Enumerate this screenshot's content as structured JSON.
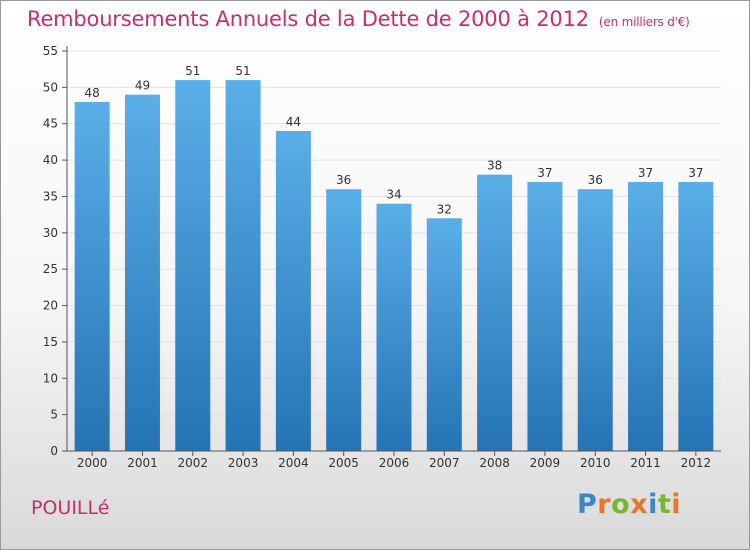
{
  "chart_data": {
    "type": "bar",
    "title": "Remboursements Annuels de la Dette de 2000 à 2012",
    "subtitle": "(en milliers d'€)",
    "categories": [
      "2000",
      "2001",
      "2002",
      "2003",
      "2004",
      "2005",
      "2006",
      "2007",
      "2008",
      "2009",
      "2010",
      "2011",
      "2012"
    ],
    "values": [
      48,
      49,
      51,
      51,
      44,
      36,
      34,
      32,
      38,
      37,
      36,
      37,
      37
    ],
    "ylim": [
      0,
      55
    ],
    "yticks": [
      0,
      5,
      10,
      15,
      20,
      25,
      30,
      35,
      40,
      45,
      50,
      55
    ],
    "grid": true,
    "bar_color_top": "#5aafe8",
    "bar_color_bottom": "#2573b4"
  },
  "commune": "POUILLé",
  "logo": {
    "text": "Proxiti",
    "letters": [
      {
        "ch": "P",
        "color": "#3a87c8"
      },
      {
        "ch": "r",
        "color": "#e8762b"
      },
      {
        "ch": "o",
        "color": "#79b530"
      },
      {
        "ch": "x",
        "color": "#e8762b"
      },
      {
        "ch": "i",
        "color": "#3a87c8"
      },
      {
        "ch": "t",
        "color": "#79b530"
      },
      {
        "ch": "i",
        "color": "#e8762b"
      }
    ]
  }
}
